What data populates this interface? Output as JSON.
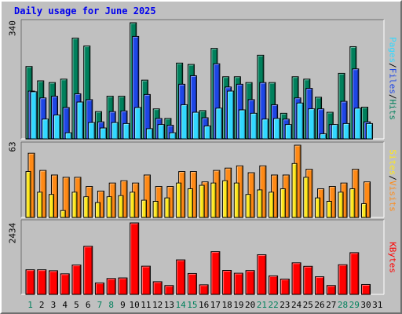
{
  "title": "Daily usage for June 2025",
  "colors": {
    "hits": "#00805c",
    "files": "#1e46e6",
    "pages": "#32d8ff",
    "visits": "#ff8a16",
    "sites": "#ffe81c",
    "kbytes": "#ff0000",
    "weekend_day": "#00805c",
    "weekday": "#000000"
  },
  "legend": {
    "pages": "Pages",
    "files": "Files",
    "hits": "Hits",
    "sites": "Sites",
    "visits": "Visits",
    "kbytes": "KBytes",
    "sep": "/"
  },
  "axis_max": {
    "hits": "340",
    "visits": "63",
    "kbytes": "2434"
  },
  "chart_data": [
    {
      "type": "bar",
      "title": "Daily usage for June 2025",
      "categories": [
        "1",
        "2",
        "3",
        "4",
        "5",
        "6",
        "7",
        "8",
        "9",
        "10",
        "11",
        "12",
        "13",
        "14",
        "15",
        "16",
        "17",
        "18",
        "19",
        "20",
        "21",
        "22",
        "23",
        "24",
        "25",
        "26",
        "27",
        "28",
        "29",
        "30",
        "31"
      ],
      "weekend_days": [
        "1",
        "7",
        "8",
        "14",
        "15",
        "21",
        "22",
        "28",
        "29"
      ],
      "ylim": [
        0,
        340
      ],
      "series": [
        {
          "name": "Hits",
          "values": [
            212,
            170,
            165,
            175,
            295,
            272,
            80,
            125,
            125,
            340,
            172,
            88,
            60,
            222,
            218,
            83,
            265,
            182,
            182,
            165,
            245,
            165,
            75,
            182,
            175,
            122,
            78,
            192,
            270,
            93,
            0
          ]
        },
        {
          "name": "Files",
          "values": [
            140,
            120,
            125,
            92,
            132,
            115,
            50,
            80,
            82,
            300,
            130,
            60,
            40,
            160,
            185,
            62,
            220,
            152,
            160,
            115,
            165,
            100,
            58,
            120,
            148,
            88,
            42,
            110,
            205,
            50,
            0
          ]
        },
        {
          "name": "Pages",
          "values": [
            138,
            58,
            70,
            18,
            108,
            48,
            32,
            48,
            45,
            92,
            30,
            42,
            18,
            100,
            78,
            38,
            90,
            140,
            85,
            75,
            58,
            60,
            42,
            105,
            88,
            15,
            42,
            45,
            90,
            45,
            0
          ]
        }
      ]
    },
    {
      "type": "bar",
      "categories": [
        "1",
        "2",
        "3",
        "4",
        "5",
        "6",
        "7",
        "8",
        "9",
        "10",
        "11",
        "12",
        "13",
        "14",
        "15",
        "16",
        "17",
        "18",
        "19",
        "20",
        "21",
        "22",
        "23",
        "24",
        "25",
        "26",
        "27",
        "28",
        "29",
        "30",
        "31"
      ],
      "ylim": [
        0,
        63
      ],
      "series": [
        {
          "name": "Visits",
          "values": [
            56,
            41,
            37,
            35,
            35,
            27,
            23,
            30,
            32,
            30,
            37,
            27,
            27,
            40,
            40,
            31,
            41,
            43,
            45,
            39,
            45,
            37,
            37,
            63,
            42,
            25,
            27,
            30,
            42,
            31,
            0
          ]
        },
        {
          "name": "Sites",
          "values": [
            40,
            22,
            20,
            6,
            22,
            18,
            13,
            18,
            19,
            22,
            15,
            14,
            17,
            30,
            25,
            28,
            30,
            32,
            30,
            20,
            24,
            22,
            25,
            47,
            35,
            17,
            14,
            22,
            25,
            12,
            0
          ]
        }
      ]
    },
    {
      "type": "bar",
      "categories": [
        "1",
        "2",
        "3",
        "4",
        "5",
        "6",
        "7",
        "8",
        "9",
        "10",
        "11",
        "12",
        "13",
        "14",
        "15",
        "16",
        "17",
        "18",
        "19",
        "20",
        "21",
        "22",
        "23",
        "24",
        "25",
        "26",
        "27",
        "28",
        "29",
        "30",
        "31"
      ],
      "ylim": [
        0,
        2434
      ],
      "series": [
        {
          "name": "KBytes",
          "values": [
            838,
            838,
            805,
            700,
            1000,
            1640,
            390,
            540,
            560,
            2434,
            960,
            430,
            300,
            1175,
            710,
            325,
            1455,
            815,
            720,
            810,
            1350,
            630,
            520,
            1075,
            955,
            600,
            300,
            1010,
            1420,
            335,
            0
          ]
        }
      ]
    }
  ]
}
